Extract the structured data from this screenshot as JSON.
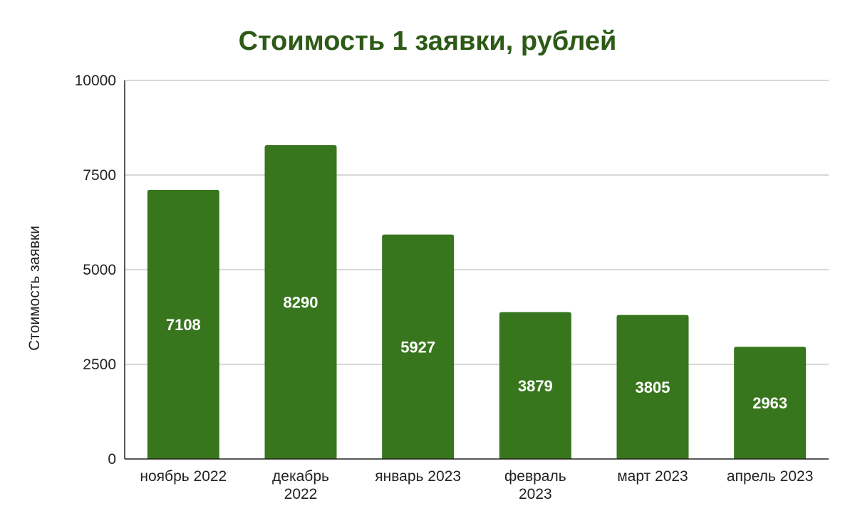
{
  "chart_data": {
    "type": "bar",
    "title": "Стоимость 1 заявки, рублей",
    "xlabel": "",
    "ylabel": "Стоимость заявки",
    "categories": [
      [
        "ноябрь 2022"
      ],
      [
        "декабрь",
        "2022"
      ],
      [
        "январь 2023"
      ],
      [
        "февраль",
        "2023"
      ],
      [
        "март 2023"
      ],
      [
        "апрель 2023"
      ]
    ],
    "values": [
      7108,
      8290,
      5927,
      3879,
      3805,
      2963
    ],
    "data_labels": [
      "7108",
      "8290",
      "5927",
      "3879",
      "3805",
      "2963"
    ],
    "ylim": [
      0,
      10000
    ],
    "yticks": [
      0,
      2500,
      5000,
      7500,
      10000
    ],
    "ytick_labels": [
      "0",
      "2500",
      "5000",
      "7500",
      "10000"
    ],
    "grid": true,
    "legend": "none",
    "colors": {
      "bar": "#38761d",
      "title": "#2d5a16",
      "grid": "#cccccc",
      "axis": "#222222",
      "data_label": "#ffffff"
    }
  }
}
